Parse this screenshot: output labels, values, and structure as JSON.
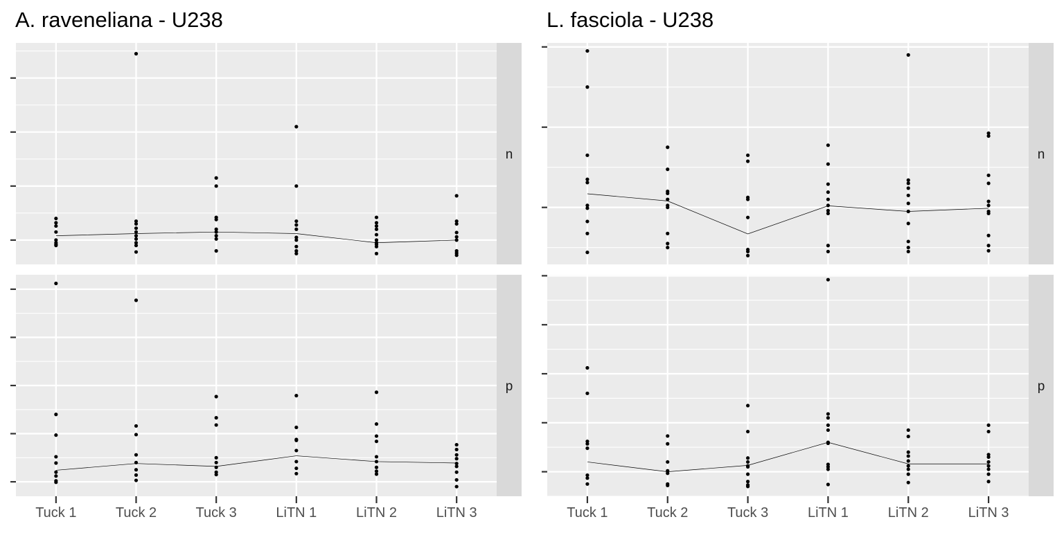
{
  "chart_data": [
    {
      "type": "scatter",
      "title": "A. raveneliana - U238",
      "categories": [
        "Tuck 1",
        "Tuck 2",
        "Tuck 3",
        "LiTN 1",
        "LiTN 2",
        "LiTN 3"
      ],
      "xlabel": "",
      "ylabel": "",
      "y_tick_labels_shown": false,
      "grid": true,
      "facets": [
        {
          "strip": "n",
          "ylim": [
            -0.45,
            3.65
          ],
          "yticks": [
            0,
            1,
            2,
            3
          ],
          "points": [
            [
              0.4,
              0.32,
              0.26,
              0.15,
              0.0,
              -0.05,
              -0.08,
              -0.1
            ],
            [
              0.35,
              0.3,
              0.22,
              0.15,
              0.08,
              0.02,
              -0.05,
              -0.1,
              -0.22,
              3.45
            ],
            [
              0.42,
              0.38,
              0.2,
              0.15,
              0.08,
              0.02,
              -0.2,
              1.0,
              1.15
            ],
            [
              0.35,
              0.28,
              0.2,
              0.05,
              0.0,
              -0.12,
              -0.2,
              -0.25,
              1.0,
              2.1
            ],
            [
              0.42,
              0.32,
              0.26,
              0.2,
              0.1,
              0.0,
              -0.05,
              -0.08,
              -0.12,
              -0.25
            ],
            [
              0.82,
              0.35,
              0.3,
              0.14,
              0.06,
              0.0,
              -0.2,
              -0.24,
              -0.28
            ]
          ],
          "line": [
            0.08,
            0.12,
            0.15,
            0.12,
            -0.05,
            0.0
          ]
        },
        {
          "strip": "p",
          "ylim": [
            -0.3,
            4.3
          ],
          "yticks": [
            0,
            1,
            2,
            3,
            4
          ],
          "points": [
            [
              1.4,
              0.97,
              0.52,
              0.39,
              0.2,
              0.12,
              0.02,
              -0.01,
              4.12
            ],
            [
              1.16,
              0.98,
              0.56,
              0.4,
              0.25,
              0.14,
              0.03,
              3.77
            ],
            [
              1.77,
              1.33,
              1.18,
              0.5,
              0.4,
              0.3,
              0.2,
              0.15
            ],
            [
              1.79,
              1.13,
              0.88,
              0.86,
              0.65,
              0.42,
              0.28,
              0.17
            ],
            [
              1.86,
              1.2,
              0.95,
              0.84,
              0.52,
              0.42,
              0.3,
              0.22,
              0.16
            ],
            [
              0.77,
              0.67,
              0.56,
              0.48,
              0.38,
              0.32,
              0.2,
              0.04,
              -0.1
            ]
          ],
          "line": [
            0.24,
            0.38,
            0.32,
            0.54,
            0.42,
            0.39
          ]
        }
      ]
    },
    {
      "type": "scatter",
      "title": "L. fasciola - U238",
      "categories": [
        "Tuck 1",
        "Tuck 2",
        "Tuck 3",
        "LiTN 1",
        "LiTN 2",
        "LiTN 3"
      ],
      "xlabel": "",
      "ylabel": "",
      "y_tick_labels_shown": false,
      "grid": true,
      "facets": [
        {
          "strip": "n",
          "ylim": [
            -1.42,
            4.1
          ],
          "yticks": [
            0,
            2,
            4
          ],
          "points": [
            [
              3.9,
              3.0,
              1.3,
              0.7,
              0.62,
              0.05,
              -0.02,
              -0.35,
              -0.65,
              -1.12
            ],
            [
              1.5,
              0.95,
              0.4,
              0.35,
              0.2,
              0.05,
              0.0,
              -0.65,
              -0.9,
              -1.0
            ],
            [
              1.3,
              1.15,
              0.25,
              0.2,
              -0.25,
              -1.05,
              -1.1,
              -1.2
            ],
            [
              1.55,
              1.08,
              0.58,
              0.38,
              0.2,
              0.05,
              -0.08,
              -0.15,
              -0.95,
              -1.1
            ],
            [
              3.8,
              0.68,
              0.6,
              0.48,
              0.3,
              0.1,
              -0.1,
              -0.4,
              -0.85,
              -1.0,
              -1.1
            ],
            [
              1.85,
              1.78,
              0.8,
              0.6,
              0.15,
              0.05,
              -0.1,
              -0.15,
              -0.7,
              -0.95,
              -1.08
            ]
          ],
          "line": [
            0.34,
            0.16,
            -0.66,
            0.04,
            -0.1,
            -0.02
          ]
        },
        {
          "strip": "p",
          "ylim": [
            -0.5,
            4.02
          ],
          "yticks": [
            0,
            1,
            2,
            3,
            4
          ],
          "points": [
            [
              2.12,
              1.6,
              0.62,
              0.57,
              0.48,
              -0.07,
              -0.13,
              -0.25
            ],
            [
              0.73,
              0.57,
              0.2,
              0.02,
              -0.03,
              -0.25,
              -0.28
            ],
            [
              1.35,
              0.82,
              0.28,
              0.2,
              0.12,
              0.1,
              -0.05,
              -0.2,
              -0.27,
              -0.3
            ],
            [
              3.92,
              1.18,
              1.1,
              0.95,
              0.85,
              0.6,
              0.58,
              0.15,
              0.1,
              0.05,
              -0.26
            ],
            [
              0.85,
              0.72,
              0.4,
              0.32,
              0.22,
              0.12,
              0.05,
              -0.05,
              -0.22
            ],
            [
              0.95,
              0.82,
              0.35,
              0.3,
              0.2,
              0.12,
              0.05,
              -0.05,
              -0.2
            ]
          ],
          "line": [
            0.2,
            0.0,
            0.13,
            0.6,
            0.16,
            0.16
          ]
        }
      ]
    }
  ]
}
